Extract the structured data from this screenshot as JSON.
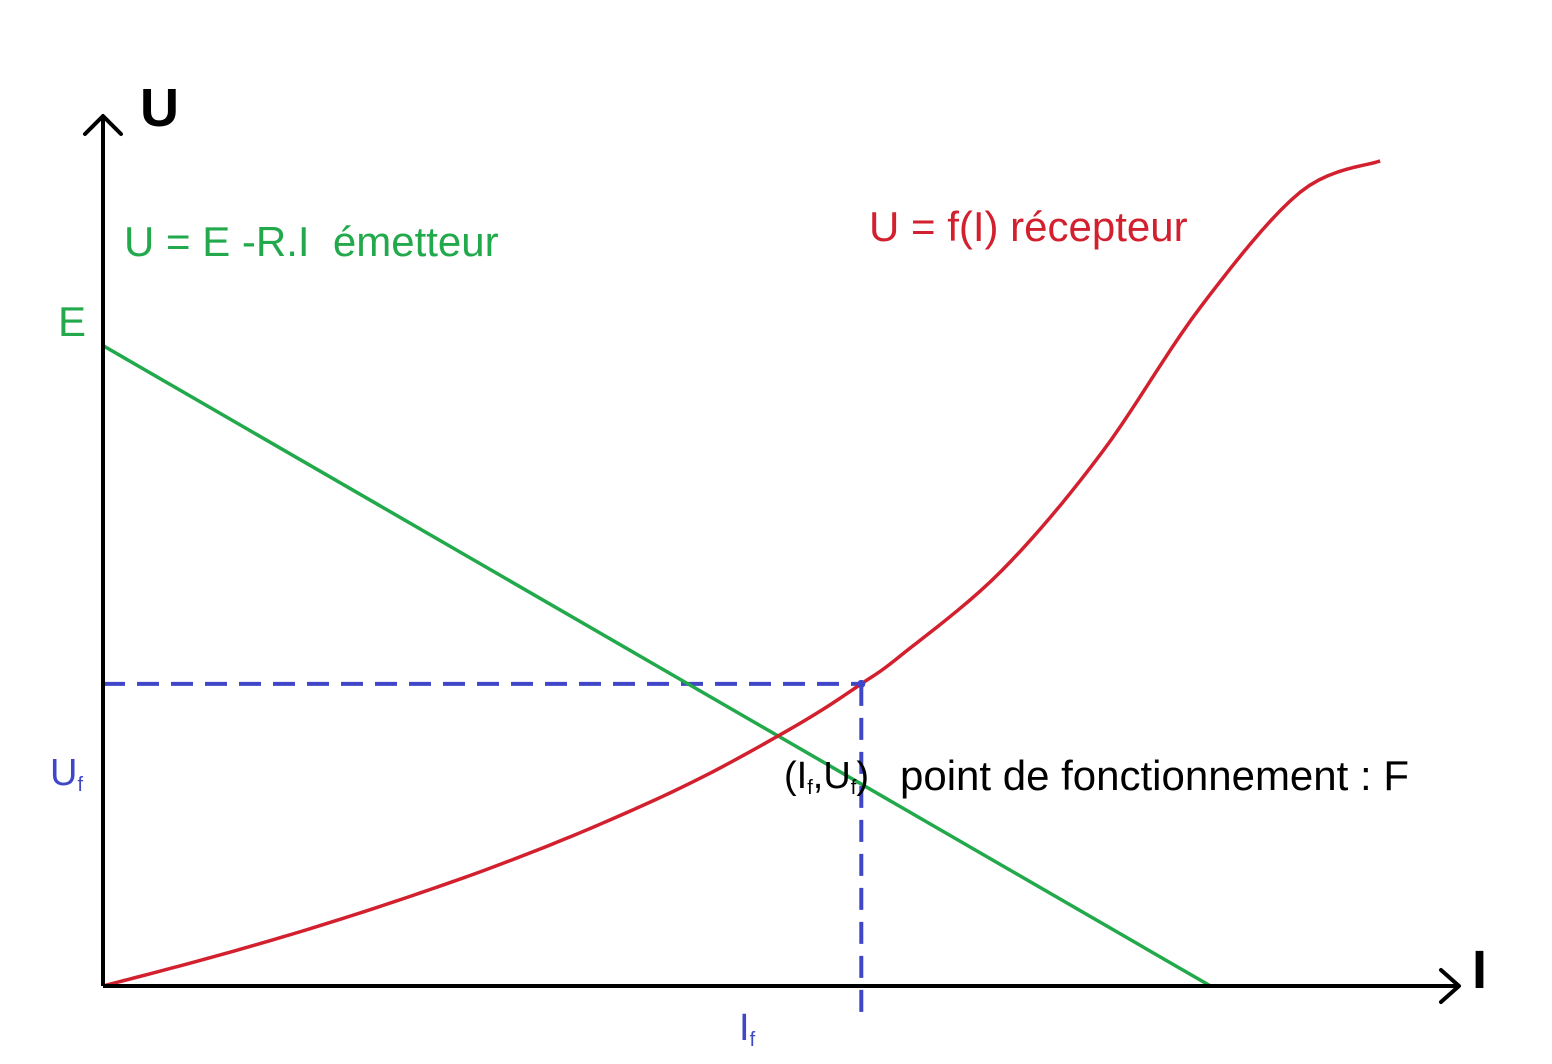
{
  "chart_data": {
    "type": "line",
    "title": "",
    "xlabel": "I",
    "ylabel": "U",
    "grid": false,
    "xlim": [
      0,
      13.4
    ],
    "ylim": [
      0,
      10
    ],
    "series": [
      {
        "name": "U = E -R.I  émetteur",
        "label": "U = E -R.I  émetteur",
        "color": "#22a94b",
        "kind": "linear",
        "points": [
          [
            0,
            7.8
          ],
          [
            11.1,
            0
          ]
        ]
      },
      {
        "name": "U = f(I) récepteur",
        "label": "U = f(I) récepteur",
        "color": "#d3202e",
        "kind": "curve",
        "points": [
          [
            0,
            0
          ],
          [
            1,
            0.32
          ],
          [
            2,
            0.67
          ],
          [
            3,
            1.06
          ],
          [
            4,
            1.49
          ],
          [
            5,
            1.98
          ],
          [
            6,
            2.54
          ],
          [
            7,
            3.21
          ],
          [
            7.6,
            3.68
          ],
          [
            8,
            4.03
          ],
          [
            9,
            5.05
          ],
          [
            10,
            6.48
          ],
          [
            11,
            8.27
          ],
          [
            12,
            9.67
          ],
          [
            12.8,
            10.05
          ]
        ]
      }
    ],
    "operating_point": {
      "x": 7.6,
      "y": 3.68,
      "color": "#3f47c8",
      "label": "point de fonctionnement : F",
      "coords_label": {
        "open": "(",
        "a": "I",
        "a_sub": "f",
        "sep": ",",
        "b": "U",
        "b_sub": "f",
        "close": ")"
      }
    },
    "y_ticks": [
      {
        "value": 7.8,
        "text": "E",
        "color": "#22a94b"
      },
      {
        "value": 3.68,
        "text": "U",
        "sub": "f",
        "color": "#3f47c8"
      }
    ],
    "x_ticks": [
      {
        "value": 7.6,
        "text": "I",
        "sub": "f",
        "color": "#3f47c8"
      }
    ],
    "colors": {
      "axis": "#000000",
      "emitter": "#22a94b",
      "receiver": "#d3202e",
      "operating": "#3f47c8"
    }
  }
}
